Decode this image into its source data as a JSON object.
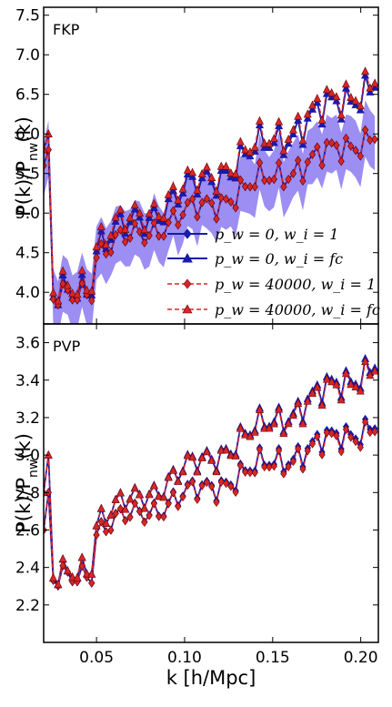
{
  "figure": {
    "xlabel": "k [h/Mpc]",
    "colors": {
      "blue": "#1a1aaa",
      "red": "#d62728",
      "band": "#7b68ee"
    }
  },
  "chart_data": [
    {
      "type": "line",
      "panel_label": "FKP",
      "ylabel": "P(k)/P_nw(k)",
      "ylabel_main": "P(k)/P",
      "ylabel_sub": "nw",
      "ylabel_tail": "(k)",
      "xlim": [
        0.02,
        0.21
      ],
      "ylim": [
        3.6,
        7.6
      ],
      "xticks": [
        "0.05",
        "0.10",
        "0.15",
        "0.20"
      ],
      "yticks": [
        "4.0",
        "4.5",
        "5.0",
        "5.5",
        "6.0",
        "6.5",
        "7.0",
        "7.5"
      ],
      "legend_position": "lower-right",
      "legend": [
        "p_w = 0,  w_i = 1",
        "p_w = 0,  w_i = fc",
        "p_w = 40000,  w_i = 1",
        "p_w = 40000,  w_i = fc"
      ],
      "band": {
        "series": "p_w = 0, w_i = 1",
        "halfwidth": 0.28,
        "color": "#7b68ee"
      },
      "series": [
        {
          "name": "p_w = 0,  w_i = 1",
          "line": "solid",
          "color": "#1a1aaa",
          "marker": "diamond",
          "base": 4.5,
          "slope": 9.5,
          "amp": 0.22
        },
        {
          "name": "p_w = 0,  w_i = fc",
          "line": "solid",
          "color": "#1a1aaa",
          "marker": "triangle",
          "base": 4.6,
          "slope": 13.0,
          "amp": 0.28
        },
        {
          "name": "p_w = 40000,  w_i = 1",
          "line": "dashed",
          "color": "#d62728",
          "marker": "diamond",
          "base": 4.5,
          "slope": 9.5,
          "amp": 0.22
        },
        {
          "name": "p_w = 40000,  w_i = fc",
          "line": "dashed",
          "color": "#d62728",
          "marker": "triangle",
          "base": 4.65,
          "slope": 13.0,
          "amp": 0.28
        }
      ],
      "x_range": [
        0.02,
        0.208
      ],
      "n_points": 70,
      "dip": {
        "x_start": 0.024,
        "x_end": 0.048,
        "depth": -0.8,
        "first_value": 5.9
      }
    },
    {
      "type": "line",
      "panel_label": "PVP",
      "ylabel": "P(k)/P_nw(k)",
      "ylabel_main": "P(k)/P",
      "ylabel_sub": "nw",
      "ylabel_tail": "(k)",
      "xlim": [
        0.02,
        0.21
      ],
      "ylim": [
        2.0,
        3.7
      ],
      "xticks": [
        "0.05",
        "0.10",
        "0.15",
        "0.20"
      ],
      "yticks": [
        "2.2",
        "2.4",
        "2.6",
        "2.8",
        "3.0",
        "3.2",
        "3.4",
        "3.6"
      ],
      "series": [
        {
          "name": "p_w = 0,  w_i = 1",
          "line": "solid",
          "color": "#1a1aaa",
          "marker": "diamond",
          "base": 2.6,
          "slope": 3.6,
          "amp": 0.09
        },
        {
          "name": "p_w = 0,  w_i = fc",
          "line": "solid",
          "color": "#1a1aaa",
          "marker": "triangle",
          "base": 2.65,
          "slope": 5.3,
          "amp": 0.1
        },
        {
          "name": "p_w = 40000,  w_i = 1",
          "line": "dashed",
          "color": "#d62728",
          "marker": "diamond",
          "base": 2.6,
          "slope": 3.5,
          "amp": 0.09
        },
        {
          "name": "p_w = 40000,  w_i = fc",
          "line": "dashed",
          "color": "#d62728",
          "marker": "triangle",
          "base": 2.65,
          "slope": 5.2,
          "amp": 0.1
        }
      ],
      "x_range": [
        0.02,
        0.208
      ],
      "n_points": 70,
      "dip": {
        "x_start": 0.024,
        "x_end": 0.048,
        "depth": -0.4,
        "first_value": 2.9
      }
    }
  ]
}
